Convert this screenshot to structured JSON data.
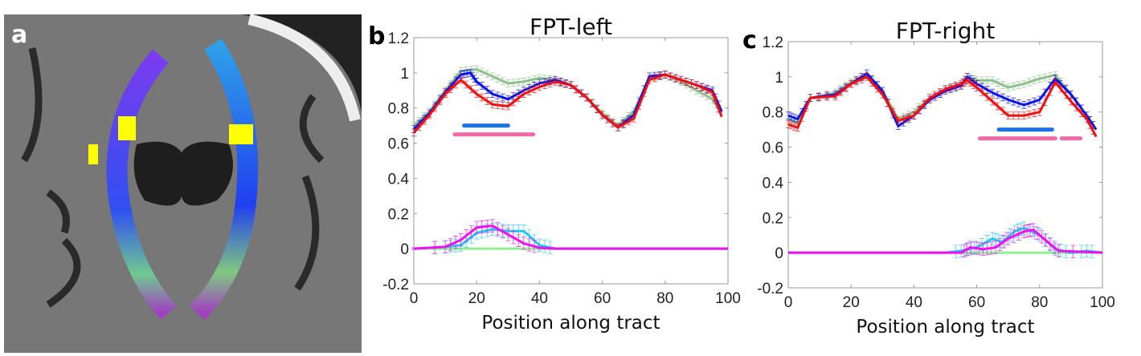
{
  "panel_a": {
    "letter": "a"
  },
  "chart_data": [
    {
      "panel_letter": "b",
      "type": "line",
      "title": "FPT-left",
      "xlabel": "Position along tract",
      "ylabel": "",
      "xlim": [
        0,
        100
      ],
      "ylim": [
        -0.2,
        1.2
      ],
      "xticks": [
        "0",
        "20",
        "40",
        "60",
        "80",
        "100"
      ],
      "yticks": [
        "-0.2",
        "0",
        "0.2",
        "0.4",
        "0.6",
        "0.8",
        "1",
        "1.2"
      ],
      "series": [
        {
          "name": "green",
          "color": "#8fbf8a",
          "x": [
            0,
            5,
            10,
            15,
            20,
            25,
            30,
            35,
            40,
            45,
            50,
            55,
            60,
            65,
            70,
            75,
            80,
            85,
            90,
            95,
            98
          ],
          "y": [
            0.7,
            0.78,
            0.9,
            1.01,
            1.02,
            0.98,
            0.94,
            0.95,
            0.97,
            0.96,
            0.93,
            0.86,
            0.77,
            0.7,
            0.78,
            0.97,
            0.99,
            0.95,
            0.9,
            0.85,
            0.77
          ]
        },
        {
          "name": "blue",
          "color": "#0a14e6",
          "x": [
            0,
            5,
            10,
            15,
            18,
            20,
            25,
            30,
            35,
            40,
            45,
            50,
            55,
            60,
            65,
            70,
            75,
            80,
            85,
            90,
            95,
            98
          ],
          "y": [
            0.68,
            0.77,
            0.89,
            0.99,
            1.0,
            0.95,
            0.88,
            0.85,
            0.9,
            0.94,
            0.96,
            0.93,
            0.86,
            0.76,
            0.69,
            0.76,
            0.98,
            0.99,
            0.96,
            0.93,
            0.9,
            0.78
          ]
        },
        {
          "name": "red",
          "color": "#f01010",
          "x": [
            0,
            5,
            10,
            15,
            20,
            25,
            30,
            35,
            40,
            45,
            50,
            55,
            60,
            65,
            70,
            75,
            80,
            85,
            90,
            95,
            98
          ],
          "y": [
            0.66,
            0.76,
            0.88,
            0.96,
            0.88,
            0.82,
            0.81,
            0.88,
            0.92,
            0.95,
            0.93,
            0.86,
            0.76,
            0.69,
            0.74,
            0.96,
            0.99,
            0.96,
            0.93,
            0.89,
            0.75
          ]
        },
        {
          "name": "light-green",
          "color": "#90ee90",
          "x": [
            0,
            100
          ],
          "y": [
            0,
            0
          ]
        },
        {
          "name": "cyan",
          "color": "#20c8f0",
          "x": [
            0,
            10,
            15,
            20,
            25,
            30,
            35,
            40,
            45,
            100
          ],
          "y": [
            0,
            0.01,
            0.02,
            0.09,
            0.11,
            0.1,
            0.1,
            0.02,
            0,
            0
          ]
        },
        {
          "name": "magenta",
          "color": "#f010f0",
          "x": [
            0,
            10,
            15,
            20,
            25,
            30,
            35,
            40,
            45,
            100
          ],
          "y": [
            0,
            0.01,
            0.05,
            0.12,
            0.13,
            0.08,
            0.03,
            0.005,
            0,
            0
          ]
        }
      ],
      "significance_bars": [
        {
          "color": "#1a73e8",
          "x": [
            16,
            30
          ],
          "y": 0.7
        },
        {
          "color": "#f06aaa",
          "x": [
            13,
            38
          ],
          "y": 0.65
        }
      ]
    },
    {
      "panel_letter": "c",
      "type": "line",
      "title": "FPT-right",
      "xlabel": "Position along tract",
      "ylabel": "",
      "xlim": [
        0,
        100
      ],
      "ylim": [
        -0.2,
        1.2
      ],
      "xticks": [
        "0",
        "20",
        "40",
        "60",
        "80",
        "100"
      ],
      "yticks": [
        "-0.2",
        "0",
        "0.2",
        "0.4",
        "0.6",
        "0.8",
        "1",
        "1.2"
      ],
      "series": [
        {
          "name": "green",
          "color": "#8fbf8a",
          "x": [
            0,
            3,
            7,
            15,
            20,
            25,
            30,
            35,
            40,
            45,
            50,
            55,
            57,
            60,
            65,
            70,
            75,
            80,
            85,
            90,
            95,
            98
          ],
          "y": [
            0.76,
            0.74,
            0.88,
            0.91,
            0.97,
            1.01,
            0.92,
            0.76,
            0.8,
            0.88,
            0.93,
            0.95,
            1.0,
            0.98,
            0.98,
            0.94,
            0.96,
            0.99,
            1.01,
            0.9,
            0.78,
            0.7
          ]
        },
        {
          "name": "blue",
          "color": "#0a14e6",
          "x": [
            0,
            3,
            7,
            15,
            20,
            25,
            30,
            35,
            40,
            45,
            50,
            55,
            57,
            60,
            65,
            70,
            75,
            80,
            85,
            90,
            95,
            98
          ],
          "y": [
            0.78,
            0.76,
            0.88,
            0.9,
            0.96,
            1.02,
            0.92,
            0.72,
            0.78,
            0.87,
            0.92,
            0.95,
            1.0,
            0.96,
            0.91,
            0.87,
            0.84,
            0.87,
            0.99,
            0.9,
            0.78,
            0.7
          ]
        },
        {
          "name": "red",
          "color": "#f01010",
          "x": [
            0,
            3,
            7,
            15,
            20,
            25,
            30,
            35,
            40,
            45,
            50,
            55,
            57,
            60,
            65,
            70,
            75,
            80,
            85,
            90,
            95,
            98
          ],
          "y": [
            0.73,
            0.71,
            0.88,
            0.89,
            0.96,
            1.0,
            0.9,
            0.75,
            0.78,
            0.88,
            0.93,
            0.96,
            0.98,
            0.94,
            0.86,
            0.78,
            0.78,
            0.8,
            0.97,
            0.86,
            0.76,
            0.66
          ]
        },
        {
          "name": "light-green",
          "color": "#90ee90",
          "x": [
            0,
            100
          ],
          "y": [
            0,
            0
          ]
        },
        {
          "name": "cyan",
          "color": "#20c8f0",
          "x": [
            0,
            50,
            55,
            60,
            65,
            68,
            72,
            75,
            80,
            85,
            90,
            95,
            100
          ],
          "y": [
            0,
            0,
            0.01,
            0.03,
            0.08,
            0.06,
            0.12,
            0.14,
            0.1,
            0.02,
            0,
            0.01,
            0
          ]
        },
        {
          "name": "magenta",
          "color": "#f010f0",
          "x": [
            0,
            55,
            58,
            62,
            66,
            70,
            75,
            78,
            82,
            86,
            100
          ],
          "y": [
            0,
            0,
            0.03,
            0.02,
            0.03,
            0.08,
            0.12,
            0.13,
            0.07,
            0.01,
            0
          ]
        }
      ],
      "significance_bars": [
        {
          "color": "#1a73e8",
          "x": [
            67,
            84
          ],
          "y": 0.7
        },
        {
          "color": "#f06aaa",
          "x": [
            61,
            85
          ],
          "y": 0.65
        },
        {
          "color": "#f06aaa",
          "x": [
            87,
            93
          ],
          "y": 0.65
        }
      ]
    }
  ]
}
